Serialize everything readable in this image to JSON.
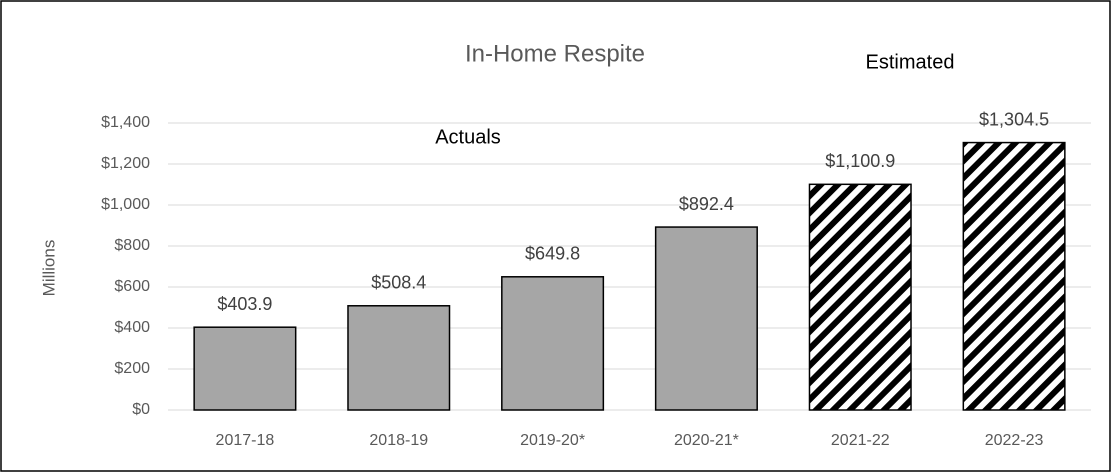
{
  "chart_data": {
    "type": "bar",
    "title": "In-Home Respite",
    "y_label": "Millions",
    "annotations": [
      "Actuals",
      "Estimated"
    ],
    "categories": [
      "2017-18",
      "2018-19",
      "2019-20*",
      "2020-21*",
      "2021-22",
      "2022-23"
    ],
    "values": [
      403.9,
      508.4,
      649.8,
      892.4,
      1100.9,
      1304.5
    ],
    "value_labels": [
      "$403.9",
      "$508.4",
      "$649.8",
      "$892.4",
      "$1,100.9",
      "$1,304.5"
    ],
    "color": "#a6a6a6",
    "hatched": [
      false,
      false,
      false,
      false,
      true,
      true
    ],
    "ylim": [
      0,
      1400
    ],
    "yticks": [
      {
        "value": 0,
        "label": "$0"
      },
      {
        "value": 200,
        "label": "$200"
      },
      {
        "value": 400,
        "label": "$400"
      },
      {
        "value": 600,
        "label": "$600"
      },
      {
        "value": 800,
        "label": "$800"
      },
      {
        "value": 1000,
        "label": "$1,000"
      },
      {
        "value": 1200,
        "label": "$1,200"
      },
      {
        "value": 1400,
        "label": "$1,400"
      }
    ],
    "grid": true
  }
}
